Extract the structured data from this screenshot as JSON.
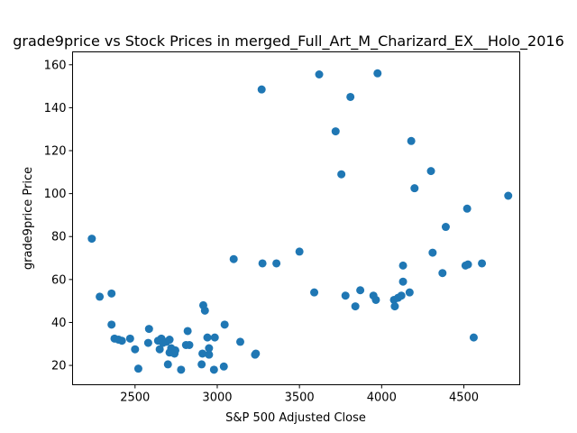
{
  "chart_data": {
    "type": "scatter",
    "title": "grade9price vs Stock Prices in merged_Full_Art_M_Charizard_EX__Holo_2016",
    "xlabel": "S&P 500 Adjusted Close",
    "ylabel": "grade9price Price",
    "xlim": [
      2120,
      4840
    ],
    "ylim": [
      11,
      166
    ],
    "x_ticks": [
      2500,
      3000,
      3500,
      4000,
      4500
    ],
    "y_ticks": [
      20,
      40,
      60,
      80,
      100,
      120,
      140,
      160
    ],
    "x_tick_labels": [
      "2500",
      "3000",
      "3500",
      "4000",
      "4500"
    ],
    "y_tick_labels": [
      "20",
      "40",
      "60",
      "80",
      "100",
      "120",
      "140",
      "160"
    ],
    "grid": false,
    "marker_color": "#1f77b4",
    "series": [
      {
        "points": [
          [
            2237,
            79
          ],
          [
            2285,
            52
          ],
          [
            2357,
            53.5
          ],
          [
            2357,
            39
          ],
          [
            2375,
            32.5
          ],
          [
            2400,
            32
          ],
          [
            2420,
            31.5
          ],
          [
            2470,
            32.5
          ],
          [
            2500,
            27.5
          ],
          [
            2520,
            18.5
          ],
          [
            2580,
            30.5
          ],
          [
            2585,
            37
          ],
          [
            2640,
            31.5
          ],
          [
            2650,
            27.5
          ],
          [
            2660,
            32.5
          ],
          [
            2670,
            30.5
          ],
          [
            2690,
            31
          ],
          [
            2700,
            20.5
          ],
          [
            2710,
            32
          ],
          [
            2710,
            26
          ],
          [
            2720,
            28
          ],
          [
            2740,
            25.5
          ],
          [
            2745,
            27
          ],
          [
            2780,
            18
          ],
          [
            2810,
            29.5
          ],
          [
            2820,
            36
          ],
          [
            2830,
            29.5
          ],
          [
            2905,
            20.5
          ],
          [
            2910,
            25.5
          ],
          [
            2915,
            48
          ],
          [
            2925,
            45.5
          ],
          [
            2940,
            33
          ],
          [
            2950,
            28
          ],
          [
            2950,
            25
          ],
          [
            2980,
            18
          ],
          [
            2985,
            33
          ],
          [
            3040,
            19.5
          ],
          [
            3045,
            39
          ],
          [
            3100,
            69.5
          ],
          [
            3140,
            31
          ],
          [
            3230,
            25
          ],
          [
            3235,
            25.5
          ],
          [
            3270,
            148.5
          ],
          [
            3275,
            67.5
          ],
          [
            3360,
            67.5
          ],
          [
            3500,
            73
          ],
          [
            3590,
            54
          ],
          [
            3620,
            155.5
          ],
          [
            3720,
            129
          ],
          [
            3755,
            109
          ],
          [
            3780,
            52.5
          ],
          [
            3810,
            145
          ],
          [
            3840,
            47.5
          ],
          [
            3870,
            55
          ],
          [
            3950,
            52.5
          ],
          [
            3965,
            50.5
          ],
          [
            3975,
            156
          ],
          [
            4075,
            50.5
          ],
          [
            4080,
            47.5
          ],
          [
            4100,
            51.5
          ],
          [
            4120,
            52.5
          ],
          [
            4130,
            66.5
          ],
          [
            4130,
            59
          ],
          [
            4170,
            54
          ],
          [
            4180,
            124.5
          ],
          [
            4200,
            102.5
          ],
          [
            4300,
            110.5
          ],
          [
            4310,
            72.5
          ],
          [
            4370,
            63
          ],
          [
            4390,
            84.5
          ],
          [
            4510,
            66.5
          ],
          [
            4520,
            93
          ],
          [
            4525,
            67
          ],
          [
            4560,
            33
          ],
          [
            4610,
            67.5
          ],
          [
            4770,
            99
          ]
        ]
      }
    ]
  }
}
